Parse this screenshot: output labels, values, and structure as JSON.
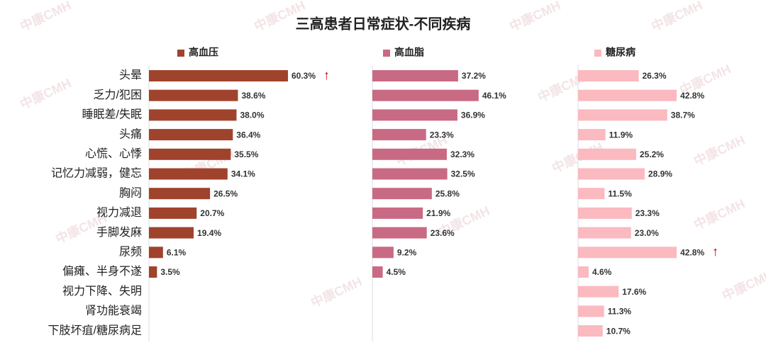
{
  "chart_data": {
    "type": "bar",
    "orientation": "horizontal",
    "title": "三高患者日常症状-不同疾病",
    "watermark": "中康CMH",
    "categories": [
      "头晕",
      "乏力/犯困",
      "睡眠差/失眠",
      "头痛",
      "心慌、心悸",
      "记忆力减弱，健忘",
      "胸闷",
      "视力减退",
      "手脚发麻",
      "尿频",
      "偏瘫、半身不遂",
      "视力下降、失明",
      "肾功能衰竭",
      "下肢坏疽/糖尿病足"
    ],
    "series": [
      {
        "name": "高血压",
        "color": "#a0432c",
        "values": [
          60.3,
          38.6,
          38.0,
          36.4,
          35.5,
          34.1,
          26.5,
          20.7,
          19.4,
          6.1,
          3.5,
          null,
          null,
          null
        ],
        "value_labels": [
          "60.3%",
          "38.6%",
          "38.0%",
          "36.4%",
          "35.5%",
          "34.1%",
          "26.5%",
          "20.7%",
          "19.4%",
          "6.1%",
          "3.5%",
          null,
          null,
          null
        ]
      },
      {
        "name": "高血脂",
        "color": "#c96a84",
        "values": [
          37.2,
          46.1,
          36.9,
          23.3,
          32.3,
          32.5,
          25.8,
          21.9,
          23.6,
          9.2,
          4.5,
          null,
          null,
          null
        ],
        "value_labels": [
          "37.2%",
          "46.1%",
          "36.9%",
          "23.3%",
          "32.3%",
          "32.5%",
          "25.8%",
          "21.9%",
          "23.6%",
          "9.2%",
          "4.5%",
          null,
          null,
          null
        ]
      },
      {
        "name": "糖尿病",
        "color": "#fbb9c0",
        "values": [
          26.3,
          42.8,
          38.7,
          11.9,
          25.2,
          28.9,
          11.5,
          23.3,
          23.0,
          42.8,
          4.6,
          17.6,
          11.3,
          10.7
        ],
        "value_labels": [
          "26.3%",
          "42.8%",
          "38.7%",
          "11.9%",
          "25.2%",
          "28.9%",
          "11.5%",
          "23.3%",
          "23.0%",
          "42.8%",
          "4.6%",
          "17.6%",
          "11.3%",
          "10.7%"
        ]
      }
    ],
    "annotations": [
      {
        "text": "↑",
        "color": "#c00000",
        "series": 0,
        "index": 0
      },
      {
        "text": "↑",
        "color": "#c00000",
        "series": 2,
        "index": 9
      }
    ]
  }
}
